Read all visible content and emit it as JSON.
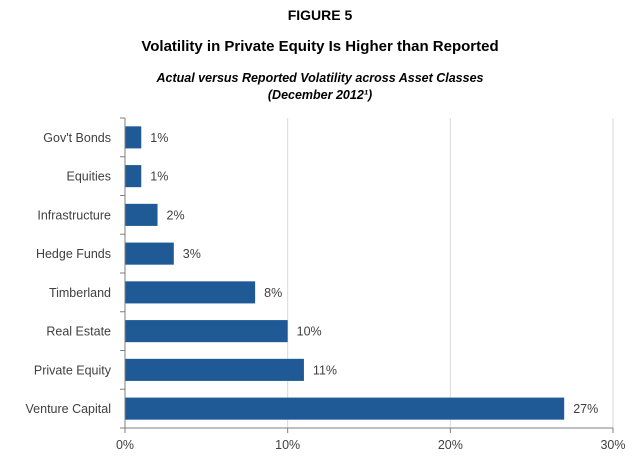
{
  "figure_label": "FIGURE 5",
  "chart_data": {
    "type": "bar",
    "orientation": "horizontal",
    "title": "Volatility in Private Equity Is Higher than Reported",
    "subtitle_line1": "Actual versus Reported Volatility across Asset Classes",
    "subtitle_line2": "(December 2012¹)",
    "categories": [
      "Gov't Bonds",
      "Equities",
      "Infrastructure",
      "Hedge Funds",
      "Timberland",
      "Real Estate",
      "Private Equity",
      "Venture Capital"
    ],
    "values": [
      1,
      1,
      2,
      3,
      8,
      10,
      11,
      27
    ],
    "data_labels": [
      "1%",
      "1%",
      "2%",
      "3%",
      "8%",
      "10%",
      "11%",
      "27%"
    ],
    "xlim": [
      0,
      30
    ],
    "xticks": [
      0,
      10,
      20,
      30
    ],
    "xtick_labels": [
      "0%",
      "10%",
      "20%",
      "30%"
    ],
    "xlabel": "",
    "ylabel": "",
    "grid": "vertical",
    "bar_color": "#1f5a97",
    "grid_color": "#d9d9d9",
    "axis_color": "#7f7f7f",
    "text_color": "#404040"
  }
}
